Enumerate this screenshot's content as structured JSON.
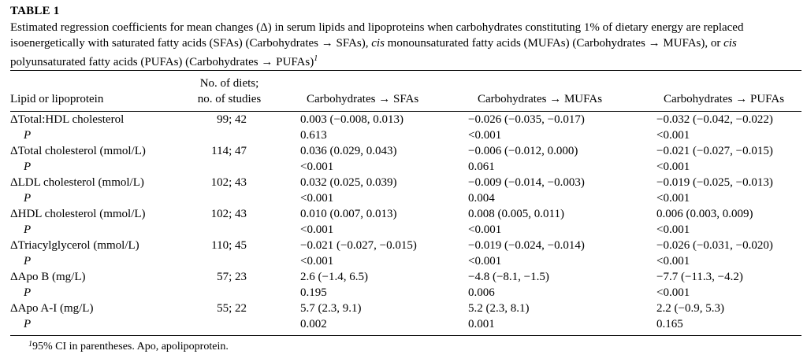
{
  "table": {
    "label": "TABLE 1",
    "caption_parts": [
      "Estimated regression coefficients for mean changes (Δ) in serum lipids and lipoproteins when carbohydrates constituting 1% of dietary energy are replaced isoenergetically with saturated fatty acids (SFAs) (Carbohydrates → SFAs), ",
      "cis",
      " monounsaturated fatty acids (MUFAs) (Carbohydrates → MUFAs), or ",
      "cis",
      " polyunsaturated fatty acids (PUFAs) (Carbohydrates → PUFAs)",
      "1"
    ],
    "headers": {
      "lipid": "Lipid or lipoprotein",
      "diets_line1": "No. of diets;",
      "diets_line2": "no. of studies",
      "sfa": "Carbohydrates → SFAs",
      "mufa": "Carbohydrates → MUFAs",
      "pufa": "Carbohydrates → PUFAs"
    },
    "rows": [
      {
        "label": "ΔTotal:HDL cholesterol",
        "diets": "99; 42",
        "sfa": " 0.003 (−0.008, 0.013)",
        "mufa": "−0.026 (−0.035, −0.017)",
        "pufa": "−0.032 (−0.042, −0.022)"
      },
      {
        "label": "P",
        "diets": "",
        "sfa": " 0.613",
        "mufa": "<0.001",
        "pufa": "<0.001"
      },
      {
        "label": "ΔTotal cholesterol (mmol/L)",
        "diets": "114; 47",
        "sfa": " 0.036 (0.029, 0.043)",
        "mufa": "−0.006 (−0.012, 0.000)",
        "pufa": "−0.021 (−0.027, −0.015)"
      },
      {
        "label": "P",
        "diets": "",
        "sfa": "<0.001",
        "mufa": " 0.061",
        "pufa": "<0.001"
      },
      {
        "label": "ΔLDL cholesterol (mmol/L)",
        "diets": "102; 43",
        "sfa": " 0.032 (0.025, 0.039)",
        "mufa": "−0.009 (−0.014, −0.003)",
        "pufa": "−0.019 (−0.025, −0.013)"
      },
      {
        "label": "P",
        "diets": "",
        "sfa": "<0.001",
        "mufa": " 0.004",
        "pufa": "<0.001"
      },
      {
        "label": "ΔHDL cholesterol (mmol/L)",
        "diets": "102; 43",
        "sfa": " 0.010 (0.007, 0.013)",
        "mufa": " 0.008 (0.005, 0.011)",
        "pufa": " 0.006 (0.003, 0.009)"
      },
      {
        "label": "P",
        "diets": "",
        "sfa": "<0.001",
        "mufa": "<0.001",
        "pufa": "<0.001"
      },
      {
        "label": "ΔTriacylglycerol (mmol/L)",
        "diets": "110; 45",
        "sfa": "−0.021 (−0.027, −0.015)",
        "mufa": "−0.019 (−0.024, −0.014)",
        "pufa": "−0.026 (−0.031, −0.020)"
      },
      {
        "label": "P",
        "diets": "",
        "sfa": "<0.001",
        "mufa": "<0.001",
        "pufa": "<0.001"
      },
      {
        "label": "ΔApo B (mg/L)",
        "diets": "57; 23",
        "sfa": "  2.6 (−1.4, 6.5)",
        "mufa": " −4.8 (−8.1, −1.5)",
        "pufa": "−7.7 (−11.3, −4.2)"
      },
      {
        "label": "P",
        "diets": "",
        "sfa": " 0.195",
        "mufa": " 0.006",
        "pufa": "<0.001"
      },
      {
        "label": "ΔApo A-I (mg/L)",
        "diets": "55; 22",
        "sfa": "  5.7 (2.3, 9.1)",
        "mufa": "  5.2 (2.3, 8.1)",
        "pufa": " 2.2 (−0.9, 5.3)"
      },
      {
        "label": "P",
        "diets": "",
        "sfa": " 0.002",
        "mufa": " 0.001",
        "pufa": " 0.165"
      }
    ],
    "footnote_mark": "1",
    "footnote": "95% CI in parentheses. Apo, apolipoprotein."
  }
}
